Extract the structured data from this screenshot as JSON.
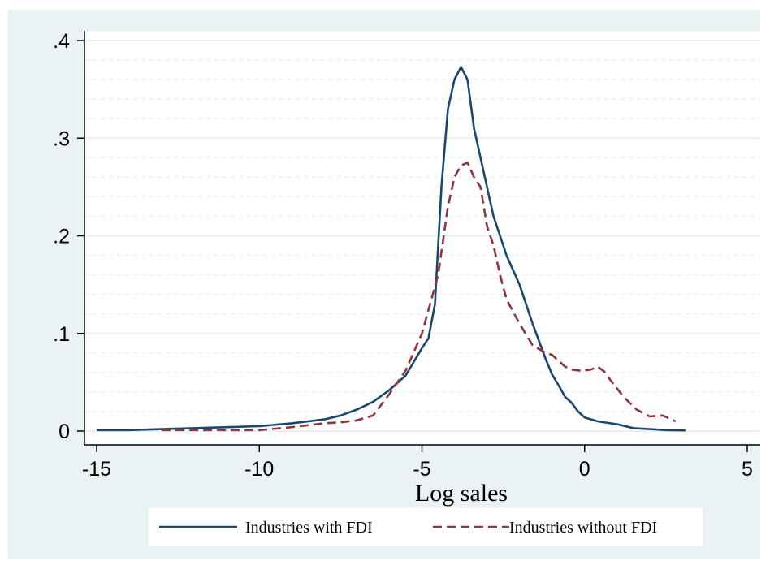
{
  "chart_data": {
    "type": "line",
    "title": "",
    "xlabel": "Log  sales",
    "ylabel": "",
    "xlim": [
      -15,
      5
    ],
    "ylim": [
      0,
      0.4
    ],
    "x_ticks": [
      -15,
      -10,
      -5,
      0,
      5
    ],
    "x_tick_labels": [
      "-15",
      "-10",
      "-5",
      "0",
      "5"
    ],
    "y_ticks": [
      0,
      0.1,
      0.2,
      0.3,
      0.4
    ],
    "y_tick_labels": [
      "0",
      ".1",
      ".2",
      ".3",
      ".4"
    ],
    "grid": true,
    "legend_position": "bottom",
    "colors": {
      "background": "#eaf2f3",
      "plot_background": "#ffffff",
      "grid": "#e9f0f2",
      "fdi": "#1a476f",
      "no_fdi": "#90353b"
    },
    "series": [
      {
        "name": "Industries with FDI",
        "style": "solid",
        "x": [
          -15,
          -14,
          -13,
          -12,
          -11,
          -10,
          -9,
          -8,
          -7.5,
          -7,
          -6.5,
          -6,
          -5.5,
          -5,
          -4.8,
          -4.6,
          -4.4,
          -4.2,
          -4.0,
          -3.8,
          -3.6,
          -3.4,
          -3.2,
          -3.0,
          -2.8,
          -2.6,
          -2.4,
          -2.0,
          -1.6,
          -1.2,
          -1.0,
          -0.8,
          -0.6,
          -0.4,
          -0.2,
          0,
          0.4,
          1,
          1.5,
          2,
          2.5,
          3.1
        ],
        "y": [
          0.001,
          0.001,
          0.002,
          0.003,
          0.004,
          0.005,
          0.008,
          0.012,
          0.016,
          0.022,
          0.03,
          0.042,
          0.057,
          0.085,
          0.095,
          0.13,
          0.25,
          0.33,
          0.36,
          0.373,
          0.36,
          0.31,
          0.28,
          0.25,
          0.22,
          0.2,
          0.18,
          0.15,
          0.11,
          0.074,
          0.058,
          0.047,
          0.035,
          0.029,
          0.02,
          0.014,
          0.01,
          0.007,
          0.003,
          0.002,
          0.001,
          0.0007
        ]
      },
      {
        "name": "Industries without FDI",
        "style": "dashed",
        "x": [
          -13,
          -12,
          -11,
          -10,
          -9,
          -8,
          -7.5,
          -7,
          -6.5,
          -6,
          -5.5,
          -5,
          -4.5,
          -4.2,
          -4.0,
          -3.8,
          -3.6,
          -3.4,
          -3.2,
          -3.0,
          -2.8,
          -2.6,
          -2.4,
          -2.0,
          -1.6,
          -1.2,
          -1.0,
          -0.8,
          -0.6,
          -0.4,
          -0.2,
          0,
          0.2,
          0.4,
          0.6,
          0.8,
          1.2,
          1.6,
          2,
          2.4,
          2.8
        ],
        "y": [
          0.001,
          0.001,
          0.001,
          0.001,
          0.004,
          0.008,
          0.009,
          0.011,
          0.016,
          0.038,
          0.062,
          0.1,
          0.16,
          0.23,
          0.26,
          0.272,
          0.275,
          0.26,
          0.25,
          0.21,
          0.19,
          0.16,
          0.135,
          0.11,
          0.088,
          0.08,
          0.078,
          0.072,
          0.066,
          0.063,
          0.062,
          0.062,
          0.063,
          0.066,
          0.061,
          0.052,
          0.035,
          0.022,
          0.015,
          0.016,
          0.01
        ]
      }
    ]
  }
}
